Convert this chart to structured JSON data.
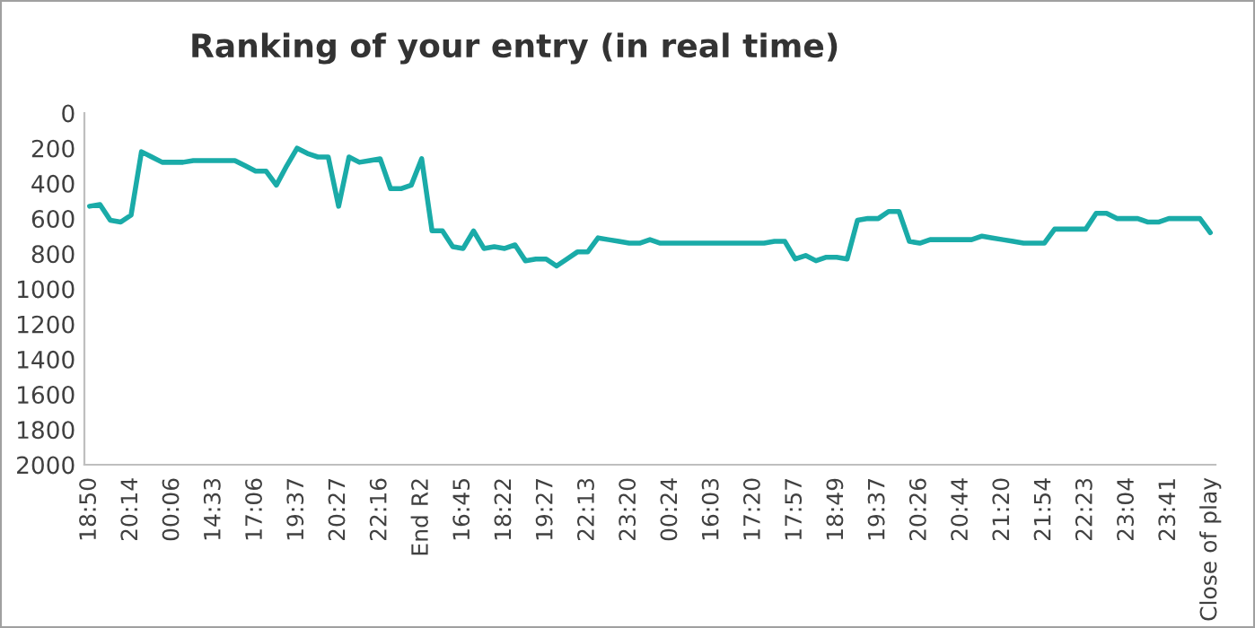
{
  "chart_data": {
    "type": "line",
    "title": "Ranking of your entry (in real time)",
    "categories": [
      "18:50",
      null,
      null,
      null,
      "20:14",
      null,
      null,
      null,
      "00:06",
      null,
      null,
      null,
      "14:33",
      null,
      null,
      null,
      "17:06",
      null,
      null,
      null,
      "19:37",
      null,
      null,
      null,
      "20:27",
      null,
      null,
      null,
      "22:16",
      null,
      null,
      null,
      "End R2",
      null,
      null,
      null,
      "16:45",
      null,
      null,
      null,
      "18:22",
      null,
      null,
      null,
      "19:27",
      null,
      null,
      null,
      "22:13",
      null,
      null,
      null,
      "23:20",
      null,
      null,
      null,
      "00:24",
      null,
      null,
      null,
      "16:03",
      null,
      null,
      null,
      "17:20",
      null,
      null,
      null,
      "17:57",
      null,
      null,
      null,
      "18:49",
      null,
      null,
      null,
      "19:37",
      null,
      null,
      null,
      "20:26",
      null,
      null,
      null,
      "20:44",
      null,
      null,
      null,
      "21:20",
      null,
      null,
      null,
      "21:54",
      null,
      null,
      null,
      "22:23",
      null,
      null,
      null,
      "23:04",
      null,
      null,
      null,
      "23:41",
      null,
      null,
      null,
      "Close of play"
    ],
    "series": [
      {
        "color": "#1aaba8",
        "values": [
          530,
          520,
          610,
          620,
          580,
          220,
          250,
          280,
          280,
          280,
          270,
          270,
          270,
          270,
          270,
          300,
          330,
          330,
          410,
          300,
          200,
          230,
          250,
          250,
          530,
          250,
          280,
          270,
          260,
          430,
          430,
          410,
          260,
          670,
          670,
          760,
          770,
          670,
          770,
          760,
          770,
          750,
          840,
          830,
          830,
          870,
          830,
          790,
          790,
          710,
          720,
          730,
          740,
          740,
          720,
          740,
          740,
          740,
          740,
          740,
          740,
          740,
          740,
          740,
          740,
          740,
          730,
          730,
          830,
          810,
          840,
          820,
          820,
          830,
          610,
          600,
          600,
          560,
          560,
          730,
          740,
          720,
          720,
          720,
          720,
          720,
          700,
          710,
          720,
          730,
          740,
          740,
          740,
          660,
          660,
          660,
          660,
          570,
          570,
          600,
          600,
          600,
          620,
          620,
          600,
          600,
          600,
          600,
          680
        ]
      }
    ],
    "ylim": [
      2000,
      0
    ],
    "yticks": [
      0,
      200,
      400,
      600,
      800,
      1000,
      1200,
      1400,
      1600,
      1800,
      2000
    ],
    "grid": false
  }
}
